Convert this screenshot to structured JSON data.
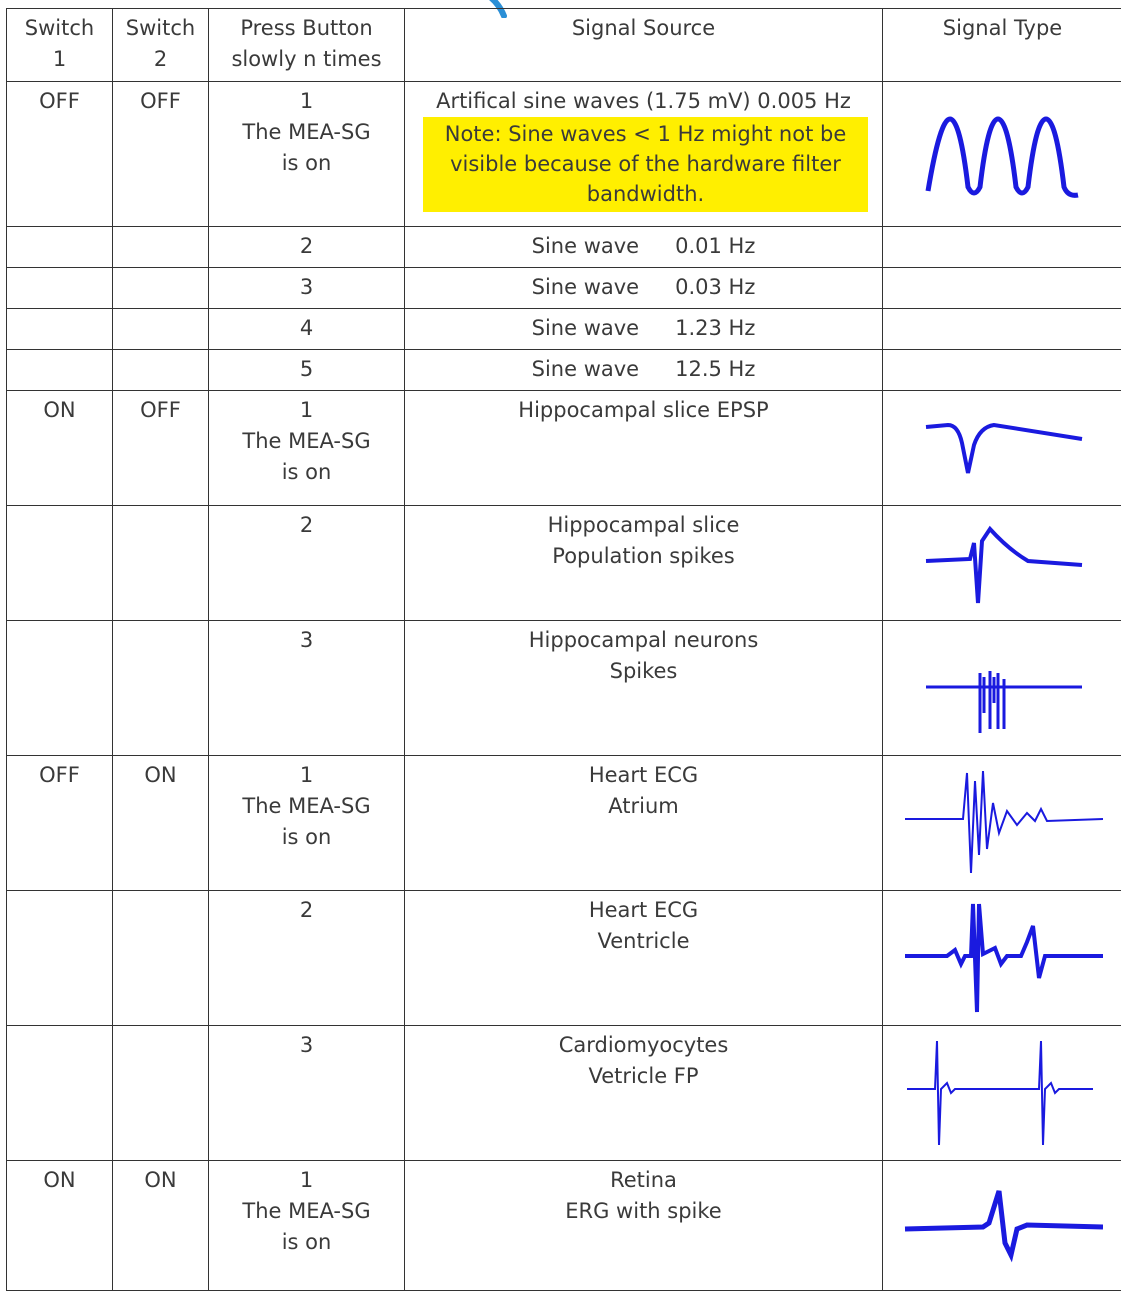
{
  "table": {
    "headers": [
      "Switch\n1",
      "Switch\n2",
      "Press Button\nslowly n times",
      "Signal Source",
      "Signal Type"
    ],
    "header_lines": [
      [
        "Switch",
        "1"
      ],
      [
        "Switch",
        "2"
      ],
      [
        "Press Button",
        "slowly n times"
      ],
      [
        "Signal Source"
      ],
      [
        "Signal Type"
      ]
    ],
    "rows": [
      {
        "switch1": "OFF",
        "switch2": "OFF",
        "press": [
          "1",
          "The MEA-SG",
          "is on"
        ],
        "source": [
          "Artifical sine waves (1.75 mV) 0.005 Hz"
        ],
        "note": "Note: Sine waves < 1 Hz might not be visible because of the hardware filter bandwidth.",
        "signal_icon": "sine-wave-icon"
      },
      {
        "switch1": "",
        "switch2": "",
        "press": [
          "2"
        ],
        "source_wave": "Sine wave",
        "source_freq": "0.01 Hz",
        "signal_icon": ""
      },
      {
        "switch1": "",
        "switch2": "",
        "press": [
          "3"
        ],
        "source_wave": "Sine wave",
        "source_freq": "0.03 Hz",
        "signal_icon": ""
      },
      {
        "switch1": "",
        "switch2": "",
        "press": [
          "4"
        ],
        "source_wave": "Sine wave",
        "source_freq": "1.23 Hz",
        "signal_icon": ""
      },
      {
        "switch1": "",
        "switch2": "",
        "press": [
          "5"
        ],
        "source_wave": "Sine wave",
        "source_freq": "12.5 Hz",
        "signal_icon": ""
      },
      {
        "switch1": "ON",
        "switch2": "OFF",
        "press": [
          "1",
          "The MEA-SG",
          "is on"
        ],
        "source": [
          "Hippocampal slice EPSP"
        ],
        "signal_icon": "epsp-waveform-icon"
      },
      {
        "switch1": "",
        "switch2": "",
        "press": [
          "2"
        ],
        "source": [
          "Hippocampal slice",
          "Population spikes"
        ],
        "signal_icon": "population-spike-waveform-icon"
      },
      {
        "switch1": "",
        "switch2": "",
        "press": [
          "3"
        ],
        "source": [
          "Hippocampal neurons",
          "Spikes"
        ],
        "signal_icon": "neuron-spikes-waveform-icon"
      },
      {
        "switch1": "OFF",
        "switch2": "ON",
        "press": [
          "1",
          "The MEA-SG",
          "is on"
        ],
        "source": [
          "Heart ECG",
          "Atrium"
        ],
        "signal_icon": "atrium-ecg-waveform-icon"
      },
      {
        "switch1": "",
        "switch2": "",
        "press": [
          "2"
        ],
        "source": [
          "Heart ECG",
          "Ventricle"
        ],
        "signal_icon": "ventricle-ecg-waveform-icon"
      },
      {
        "switch1": "",
        "switch2": "",
        "press": [
          "3"
        ],
        "source": [
          "Cardiomyocytes",
          "Vetricle FP"
        ],
        "signal_icon": "cardiomyocyte-fp-waveform-icon"
      },
      {
        "switch1": "ON",
        "switch2": "ON",
        "press": [
          "1",
          "The MEA-SG",
          "is on"
        ],
        "source": [
          "Retina",
          "ERG with spike"
        ],
        "signal_icon": "erg-spike-waveform-icon"
      }
    ]
  },
  "colors": {
    "note_highlight": "#ffef00",
    "waveform": "#1a1adf",
    "border": "#333333",
    "text": "#3a3a3a",
    "arc": "#2b8fd6"
  }
}
